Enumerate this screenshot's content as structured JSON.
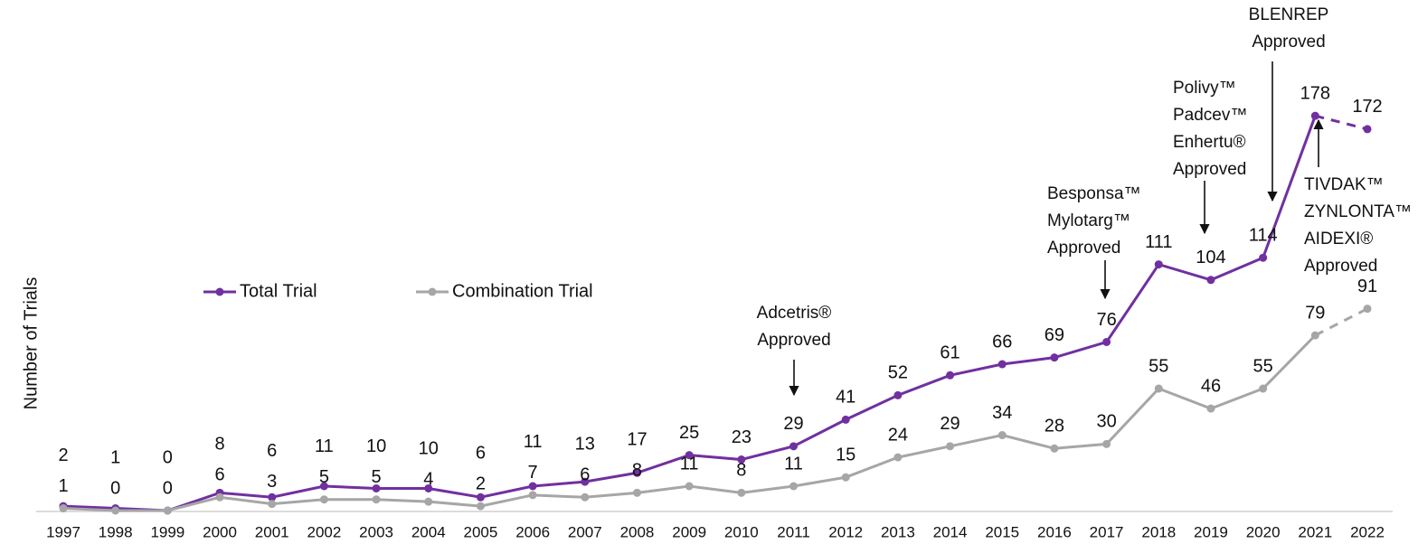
{
  "chart_data": {
    "type": "line",
    "y_axis_label": "Number of Trials",
    "categories": [
      "1997",
      "1998",
      "1999",
      "2000",
      "2001",
      "2002",
      "2003",
      "2004",
      "2005",
      "2006",
      "2007",
      "2008",
      "2009",
      "2010",
      "2011",
      "2012",
      "2013",
      "2014",
      "2015",
      "2016",
      "2017",
      "2018",
      "2019",
      "2020",
      "2021",
      "2022"
    ],
    "series": [
      {
        "name": "Total Trial",
        "color": "#7030a0",
        "values": [
          2,
          1,
          0,
          8,
          6,
          11,
          10,
          10,
          6,
          11,
          13,
          17,
          25,
          23,
          29,
          41,
          52,
          61,
          66,
          69,
          76,
          111,
          104,
          114,
          178,
          172
        ]
      },
      {
        "name": "Combination Trial",
        "color": "#a6a6a6",
        "values": [
          1,
          0,
          0,
          6,
          3,
          5,
          5,
          4,
          2,
          7,
          6,
          8,
          11,
          8,
          11,
          15,
          24,
          29,
          34,
          28,
          30,
          55,
          46,
          55,
          79,
          91
        ]
      }
    ],
    "last_segment_style": "dashed",
    "ylim": [
      0,
      185
    ],
    "annotations": [
      {
        "lines": [
          "Adcetris®",
          "Approved"
        ]
      },
      {
        "lines": [
          "Besponsa™",
          "Mylotarg™",
          "Approved"
        ]
      },
      {
        "lines": [
          "Polivy™",
          "Padcev™",
          "Enhertu®",
          "Approved"
        ]
      },
      {
        "lines": [
          "BLENREP",
          "Approved"
        ]
      },
      {
        "lines": [
          "TIVDAK™",
          "ZYNLONTA™",
          "AIDEXI®",
          "Approved"
        ]
      }
    ]
  }
}
